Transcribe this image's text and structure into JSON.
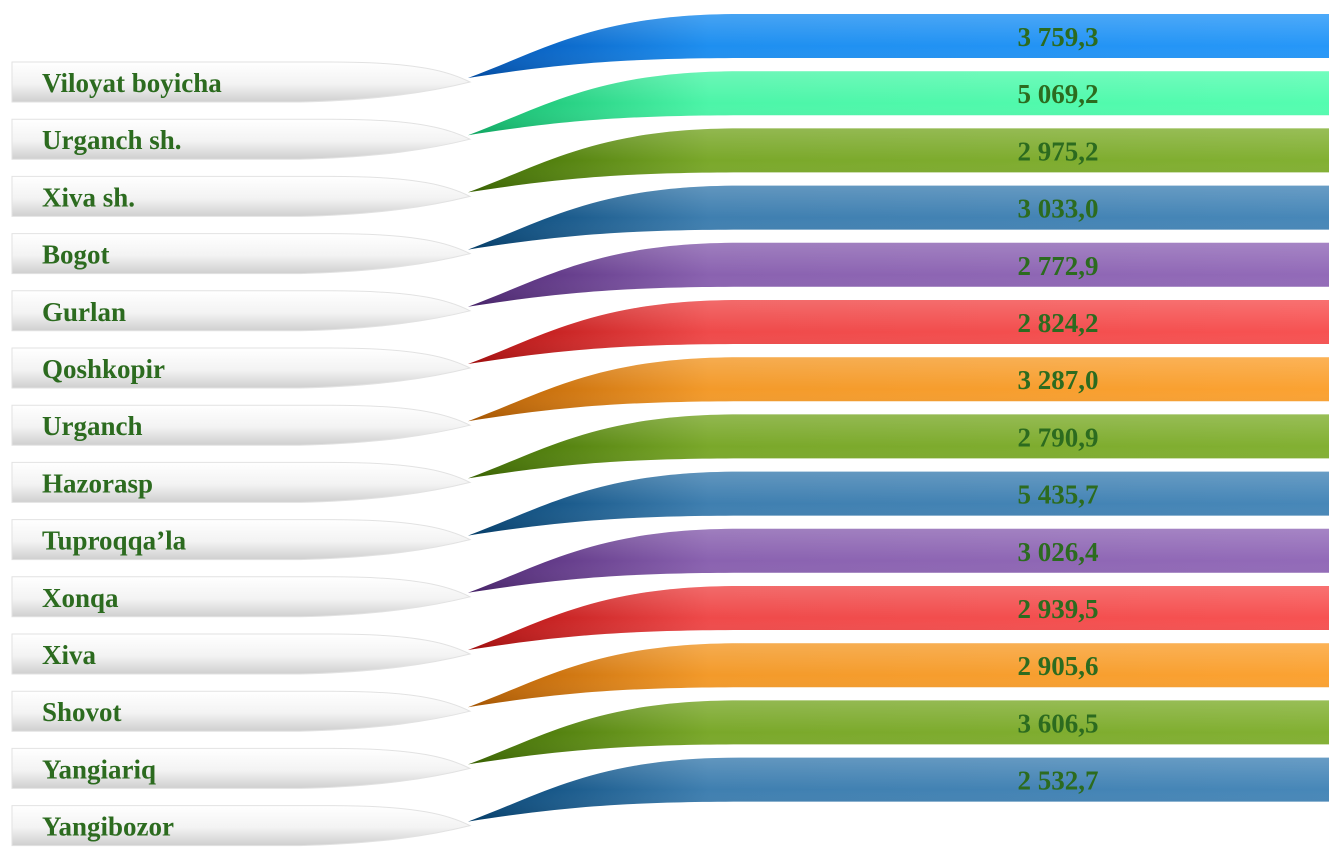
{
  "chart_data": {
    "type": "bar",
    "categories": [
      "Viloyat boyicha",
      "Urganch sh.",
      "Xiva sh.",
      "Bogot",
      "Gurlan",
      "Qoshkopir",
      "Urganch",
      "Hazorasp",
      "Tuproqqa’la",
      "Xonqa",
      "Xiva",
      "Shovot",
      "Yangiariq",
      "Yangibozor"
    ],
    "values": [
      3759.3,
      5069.2,
      2975.2,
      3033.0,
      2772.9,
      2824.2,
      3287.0,
      2790.9,
      5435.7,
      3026.4,
      2939.5,
      2905.6,
      3606.5,
      2532.7
    ],
    "value_labels": [
      "3 759,3",
      "5 069,2",
      "2 975,2",
      "3 033,0",
      "2 772,9",
      "2 824,2",
      "3 287,0",
      "2 790,9",
      "5 435,7",
      "3 026,4",
      "2 939,5",
      "2 905,6",
      "3 606,5",
      "2 532,7"
    ],
    "bar_colors": [
      "#1e8ff0",
      "#4cf5a8",
      "#7aa82a",
      "#3f7fb0",
      "#8a62b0",
      "#ef4a4a",
      "#f39a2a",
      "#7aa82a",
      "#3f7fb0",
      "#8a62b0",
      "#ef4a4a",
      "#f39a2a",
      "#7aa82a",
      "#3f7fb0"
    ],
    "label_color": "#2c6b1f",
    "title": "",
    "xlabel": "",
    "ylabel": ""
  }
}
